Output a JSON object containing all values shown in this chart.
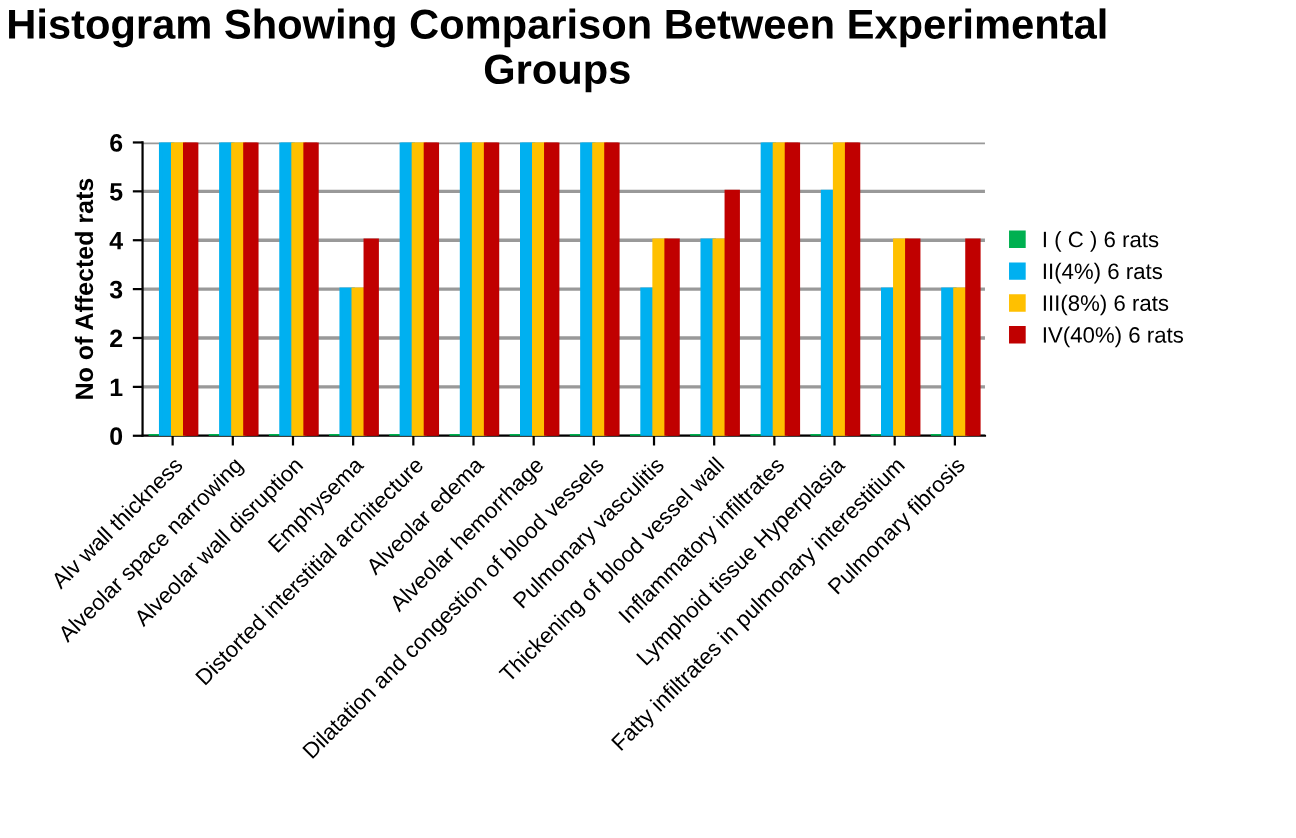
{
  "chart_data": {
    "type": "bar",
    "title": "Histogram Showing Comparison Between Experimental Groups",
    "ylabel": "No of Affected rats",
    "categories": [
      "Alv wall thickness",
      "Alveolar space narrowing",
      "Alveolar wall disruption",
      "Emphysema",
      "Distorted interstitial architecture",
      "Alveolar edema",
      "Alveolar hemorrhage",
      "Dilatation and congestion of blood vessels",
      "Pulmonary vasculitis",
      "Thickening of blood vessel wall",
      "Inflammatory infiltrates",
      "Lymphoid tissue Hyperplasia",
      "Fatty infiltrates in pulmonary interestitium",
      "Pulmonary fibrosis"
    ],
    "series": [
      {
        "name": "I ( C ) 6 rats",
        "color": "#00b050",
        "values": [
          0,
          0,
          0,
          0,
          0,
          0,
          0,
          0,
          0,
          0,
          0,
          0,
          0,
          0
        ]
      },
      {
        "name": "II(4%) 6 rats",
        "color": "#00b0f0",
        "values": [
          6,
          6,
          6,
          3,
          6,
          6,
          6,
          6,
          3,
          4,
          6,
          5,
          3,
          3
        ]
      },
      {
        "name": "III(8%) 6 rats",
        "color": "#ffc000",
        "values": [
          6,
          6,
          6,
          3,
          6,
          6,
          6,
          6,
          4,
          4,
          6,
          6,
          4,
          3
        ]
      },
      {
        "name": "IV(40%) 6 rats",
        "color": "#c00000",
        "values": [
          6,
          6,
          6,
          4,
          6,
          6,
          6,
          6,
          4,
          5,
          6,
          6,
          4,
          4
        ]
      }
    ],
    "ylim": [
      0,
      6
    ],
    "yticks": [
      0,
      1,
      2,
      3,
      4,
      5,
      6
    ],
    "grid": "y",
    "legend": "right"
  }
}
